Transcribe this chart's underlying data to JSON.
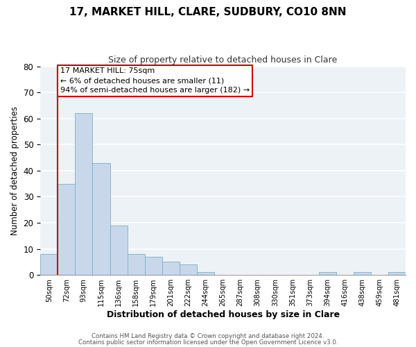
{
  "title": "17, MARKET HILL, CLARE, SUDBURY, CO10 8NN",
  "subtitle": "Size of property relative to detached houses in Clare",
  "xlabel": "Distribution of detached houses by size in Clare",
  "ylabel": "Number of detached properties",
  "categories": [
    "50sqm",
    "72sqm",
    "93sqm",
    "115sqm",
    "136sqm",
    "158sqm",
    "179sqm",
    "201sqm",
    "222sqm",
    "244sqm",
    "265sqm",
    "287sqm",
    "308sqm",
    "330sqm",
    "351sqm",
    "373sqm",
    "394sqm",
    "416sqm",
    "438sqm",
    "459sqm",
    "481sqm"
  ],
  "bar_heights": [
    8,
    35,
    62,
    43,
    19,
    8,
    7,
    5,
    4,
    1,
    0,
    0,
    0,
    0,
    0,
    0,
    1,
    0,
    1,
    0,
    1
  ],
  "bar_color": "#c8d8ea",
  "bar_edgecolor": "#7aaec8",
  "background_color": "#edf2f7",
  "grid_color": "#ffffff",
  "red_line_color": "#cc0000",
  "annotation_title": "17 MARKET HILL: 75sqm",
  "annotation_line1": "← 6% of detached houses are smaller (11)",
  "annotation_line2": "94% of semi-detached houses are larger (182) →",
  "annotation_box_edgecolor": "#cc0000",
  "ylim": [
    0,
    80
  ],
  "yticks": [
    0,
    10,
    20,
    30,
    40,
    50,
    60,
    70,
    80
  ],
  "footer1": "Contains HM Land Registry data © Crown copyright and database right 2024.",
  "footer2": "Contains public sector information licensed under the Open Government Licence v3.0."
}
